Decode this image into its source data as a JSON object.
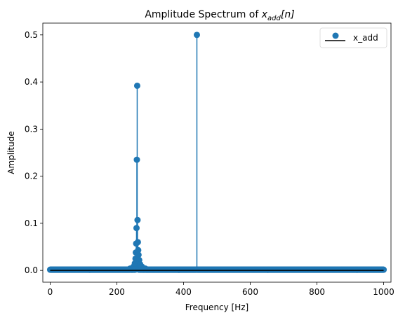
{
  "chart_data": {
    "type": "stem",
    "title": {
      "prefix": "Amplitude Spectrum of ",
      "symbol": "x",
      "subscript": "add",
      "arg": "[n]"
    },
    "xlabel": "Frequency [Hz]",
    "ylabel": "Amplitude",
    "xlim": [
      -22,
      1022
    ],
    "ylim": [
      -0.025,
      0.525
    ],
    "xticks": [
      0,
      200,
      400,
      600,
      800,
      1000
    ],
    "yticks": [
      0.0,
      0.1,
      0.2,
      0.3,
      0.4,
      0.5
    ],
    "ytick_labels": [
      "0.0",
      "0.1",
      "0.2",
      "0.3",
      "0.4",
      "0.5"
    ],
    "legend": {
      "position": "top-right",
      "entries": [
        "x_add"
      ]
    },
    "series": [
      {
        "name": "x_add",
        "color": "#1f77b4",
        "baseline_color": "#000000",
        "x_start": 0,
        "x_end": 1000,
        "x_step": 1,
        "baseline_value": 0.0015,
        "peaks": [
          {
            "x": 240,
            "y": 0.004
          },
          {
            "x": 250,
            "y": 0.008
          },
          {
            "x": 254,
            "y": 0.015
          },
          {
            "x": 256,
            "y": 0.025
          },
          {
            "x": 257,
            "y": 0.038
          },
          {
            "x": 258,
            "y": 0.057
          },
          {
            "x": 259,
            "y": 0.09
          },
          {
            "x": 260,
            "y": 0.235
          },
          {
            "x": 261,
            "y": 0.392
          },
          {
            "x": 262,
            "y": 0.107
          },
          {
            "x": 263,
            "y": 0.06
          },
          {
            "x": 264,
            "y": 0.043
          },
          {
            "x": 265,
            "y": 0.033
          },
          {
            "x": 267,
            "y": 0.022
          },
          {
            "x": 270,
            "y": 0.013
          },
          {
            "x": 275,
            "y": 0.008
          },
          {
            "x": 285,
            "y": 0.004
          },
          {
            "x": 440,
            "y": 0.5
          }
        ]
      }
    ]
  }
}
